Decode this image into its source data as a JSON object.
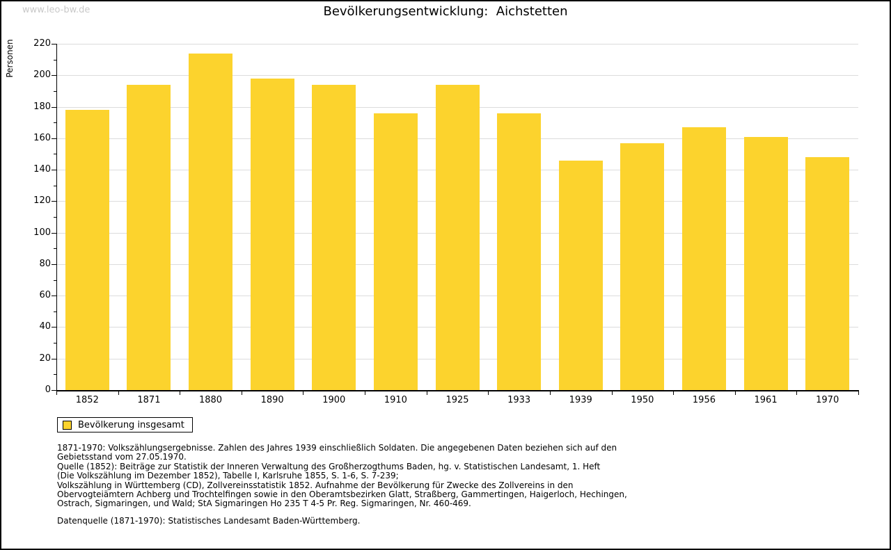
{
  "watermark": "www.leo-bw.de",
  "header": {
    "title": "Bevölkerungsentwicklung:  Aichstetten"
  },
  "chart_data": {
    "type": "bar",
    "title": "Bevölkerungsentwicklung: Aichstetten",
    "categories": [
      "1852",
      "1871",
      "1880",
      "1890",
      "1900",
      "1910",
      "1925",
      "1933",
      "1939",
      "1950",
      "1956",
      "1961",
      "1970"
    ],
    "values": [
      178,
      194,
      214,
      198,
      194,
      176,
      194,
      176,
      146,
      157,
      167,
      161,
      148
    ],
    "series_name": "Bevölkerung insgesamt",
    "xlabel": "",
    "ylabel": "Personen",
    "ylim": [
      0,
      220
    ],
    "ytick_step": 20,
    "minor_tick_step": 10,
    "grid": true,
    "legend_position": "bottom-left"
  },
  "legend": {
    "label": "Bevölkerung insgesamt"
  },
  "colors": {
    "bar": "#fcd32d",
    "grid": "#dcdcdc",
    "axis": "#000000",
    "text": "#000000",
    "watermark": "#c9c9c9"
  },
  "footer": {
    "lines": [
      "1871-1970: Volkszählungsergebnisse. Zahlen des Jahres 1939 einschließlich Soldaten. Die angegebenen Daten beziehen sich auf den",
      "Gebietsstand vom 27.05.1970.",
      "Quelle (1852): Beiträge zur Statistik der Inneren Verwaltung des Großherzogthums Baden, hg. v. Statistischen Landesamt, 1. Heft",
      "(Die Volkszählung im Dezember 1852), Tabelle I, Karlsruhe 1855, S. 1-6, S. 7-239;",
      "Volkszählung in Württemberg (CD), Zollvereinsstatistik 1852. Aufnahme der Bevölkerung für Zwecke des Zollvereins in den",
      "Obervogteiämtern Achberg und Trochtelfingen sowie in den Oberamtsbezirken Glatt, Straßberg, Gammertingen, Haigerloch, Hechingen,",
      "Ostrach, Sigmaringen, und Wald; StA Sigmaringen Ho 235 T 4-5 Pr. Reg. Sigmaringen, Nr. 460-469."
    ],
    "datasource": "Datenquelle (1871-1970): Statistisches Landesamt Baden-Württemberg."
  }
}
